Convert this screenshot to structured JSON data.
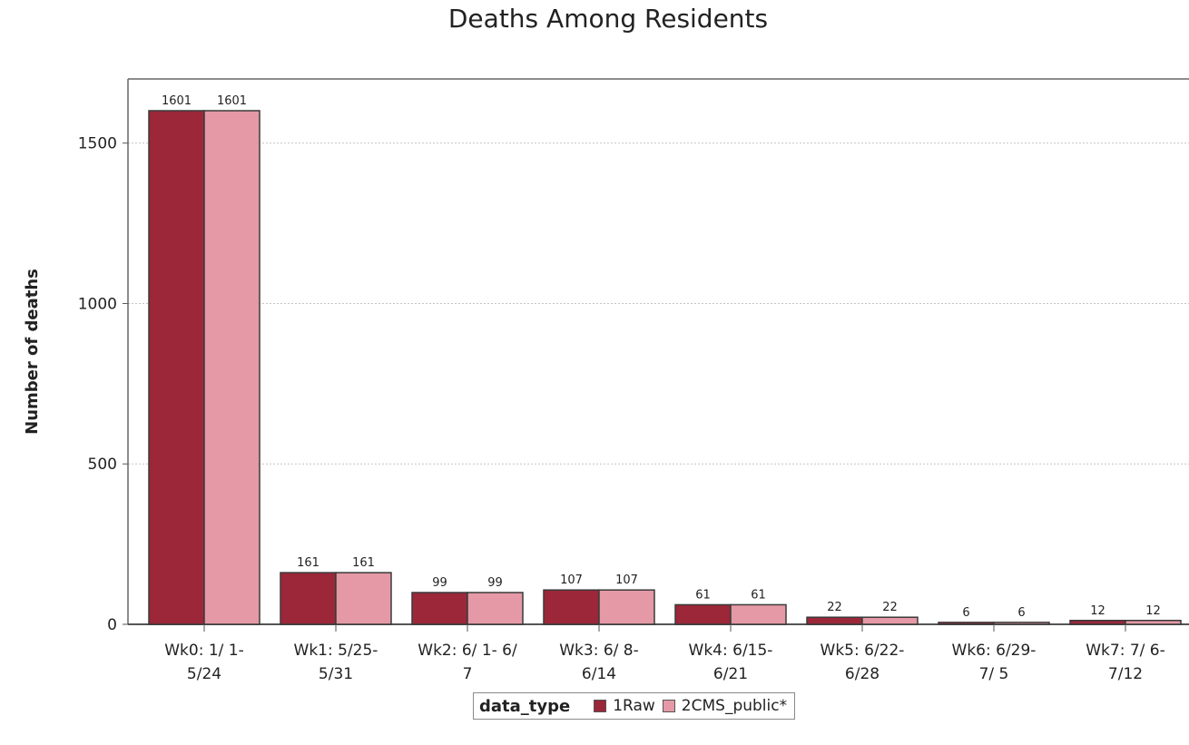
{
  "chart_data": {
    "type": "bar",
    "title": "Deaths Among Residents",
    "ylabel": "Number of deaths",
    "xlabel": "",
    "ylim": [
      0,
      1700
    ],
    "yticks": [
      0,
      500,
      1000,
      1500
    ],
    "grid": true,
    "categories": [
      [
        "Wk0: 1/ 1-",
        "5/24"
      ],
      [
        "Wk1: 5/25-",
        "5/31"
      ],
      [
        "Wk2: 6/ 1- 6/",
        "7"
      ],
      [
        "Wk3: 6/ 8-",
        "6/14"
      ],
      [
        "Wk4: 6/15-",
        "6/21"
      ],
      [
        "Wk5: 6/22-",
        "6/28"
      ],
      [
        "Wk6: 6/29-",
        "7/ 5"
      ],
      [
        "Wk7: 7/ 6-",
        "7/12"
      ]
    ],
    "series": [
      {
        "name": "1Raw",
        "color": "#9b2739",
        "values": [
          1601,
          161,
          99,
          107,
          61,
          22,
          6,
          12
        ]
      },
      {
        "name": "2CMS_public*",
        "color": "#e599a6",
        "values": [
          1601,
          161,
          99,
          107,
          61,
          22,
          6,
          12
        ]
      }
    ],
    "legend": {
      "title": "data_type",
      "position": "bottom"
    }
  }
}
